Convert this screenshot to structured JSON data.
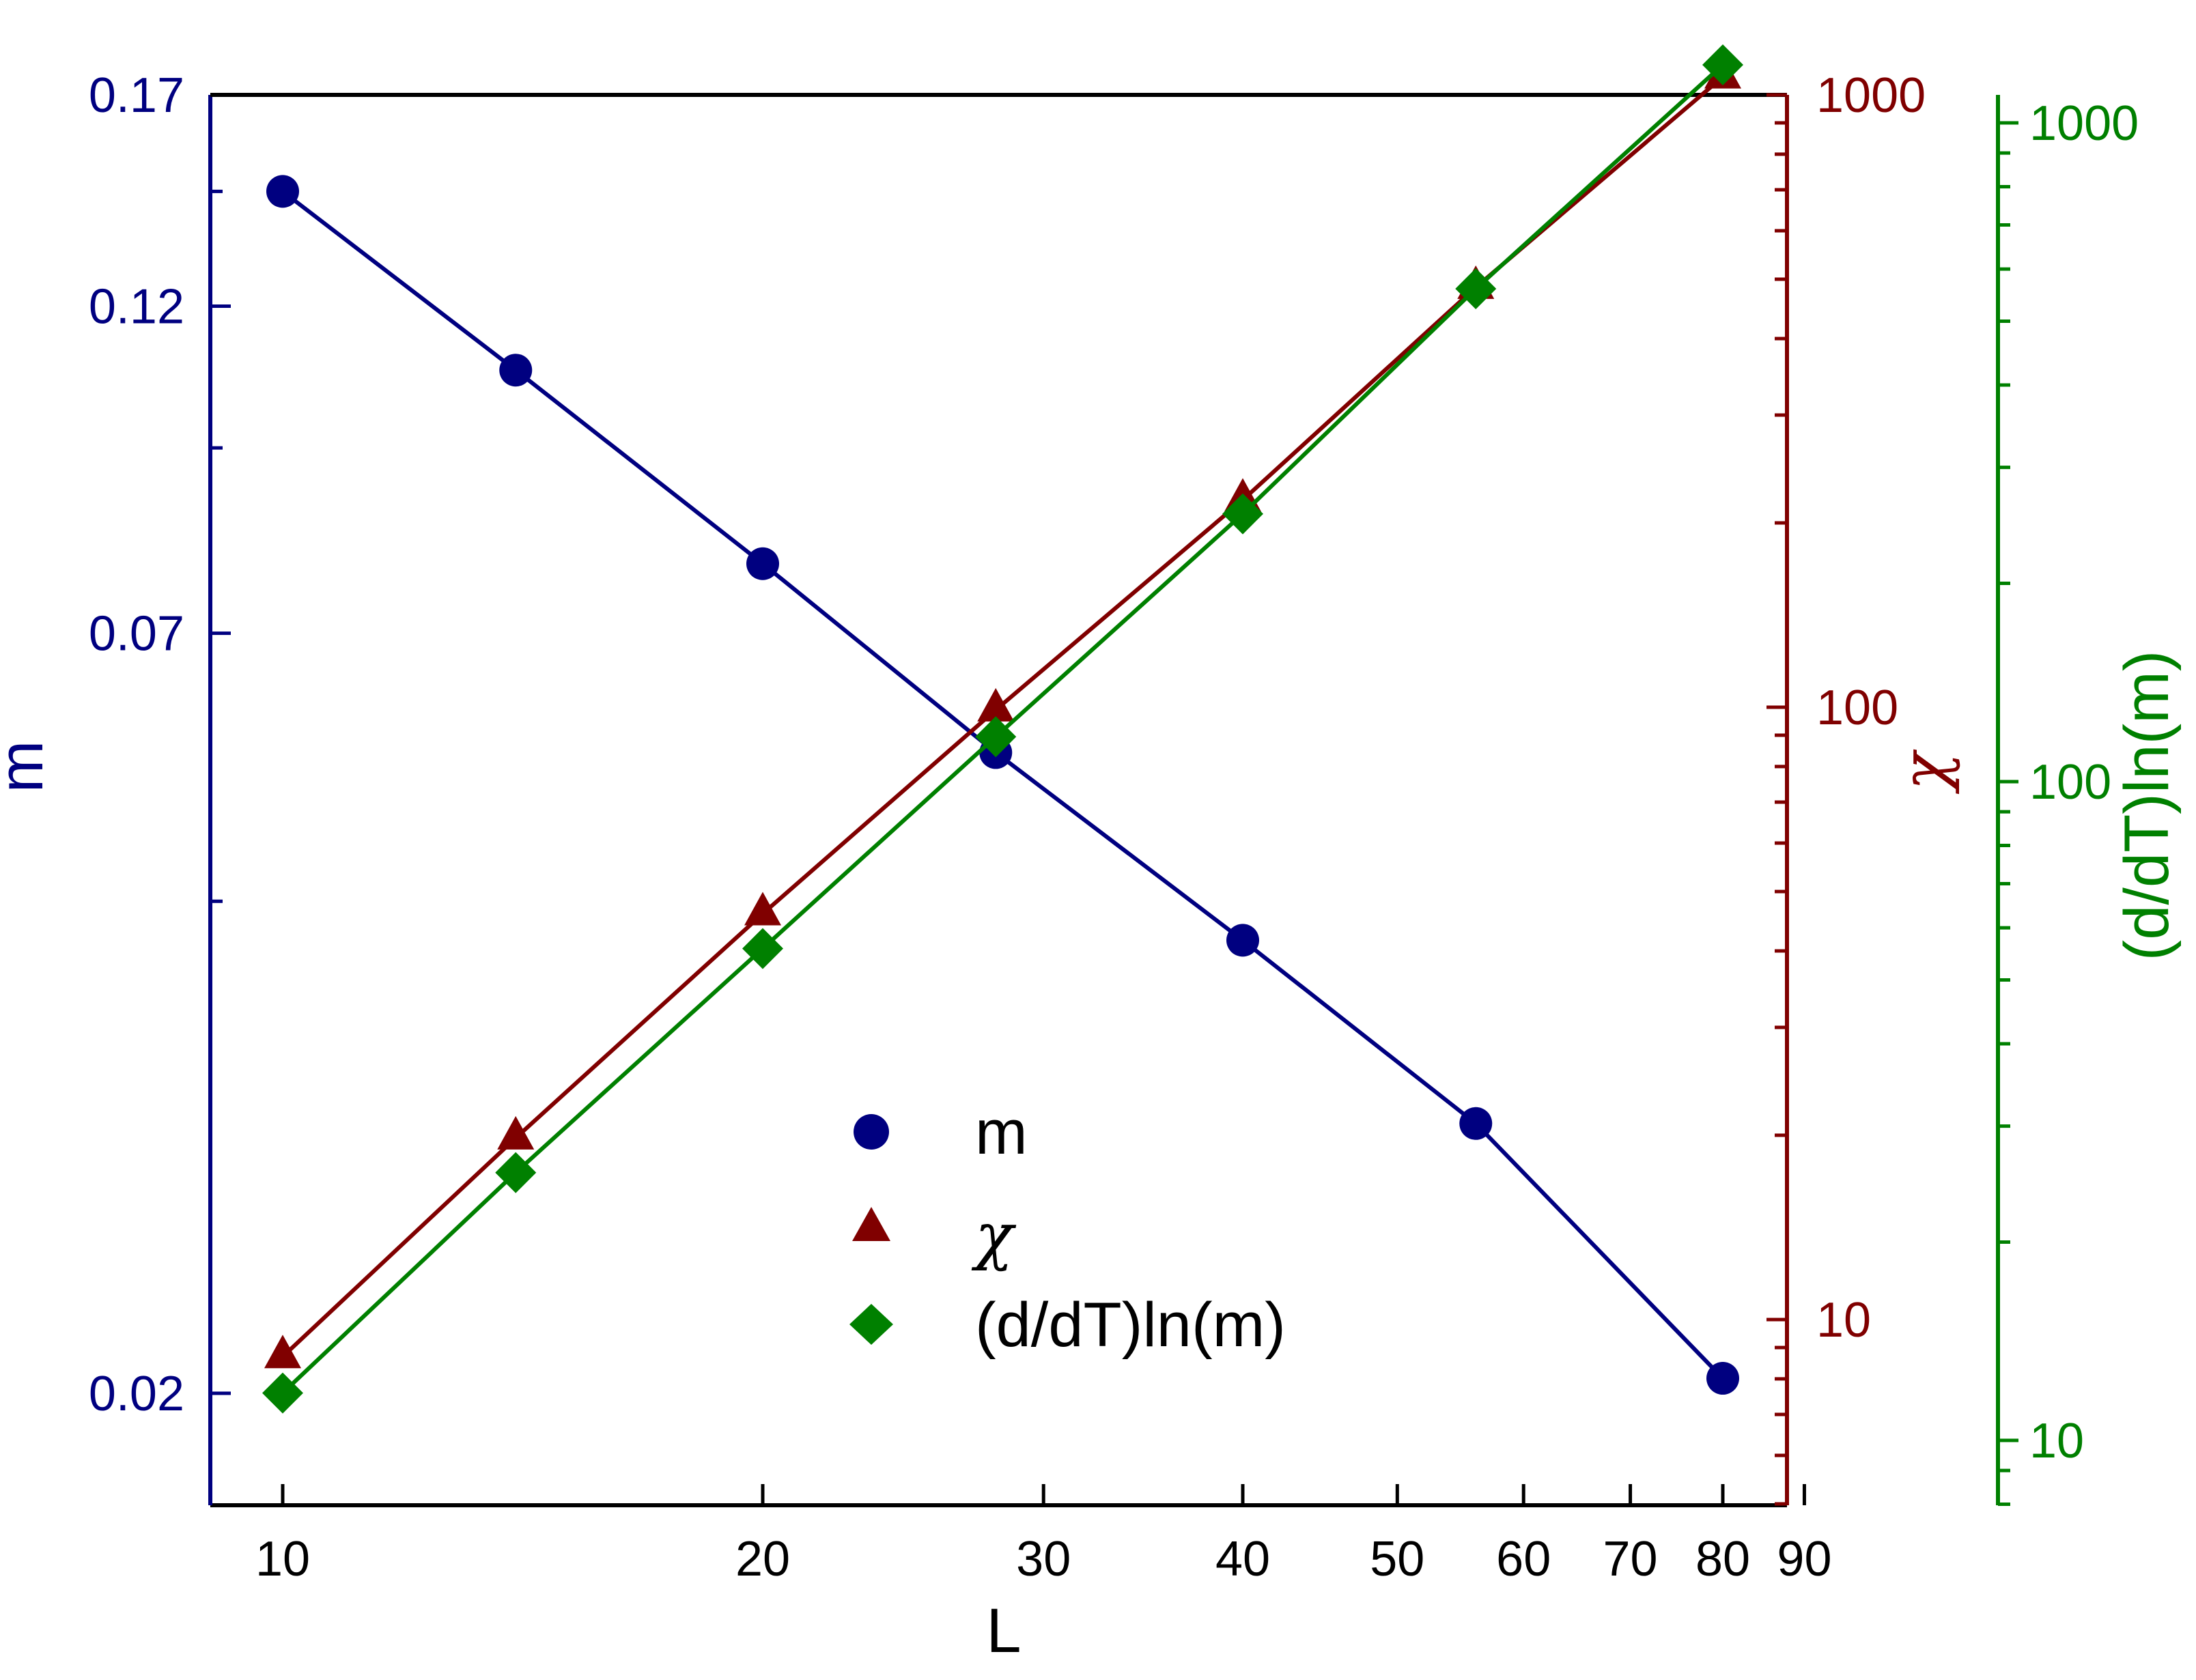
{
  "chart_data": {
    "type": "scatter",
    "x": [
      10,
      14,
      20,
      28,
      40,
      56,
      80
    ],
    "xlabel": "L",
    "xscale": "log",
    "xlim": [
      9,
      90
    ],
    "xticks": [
      10,
      20,
      30,
      40,
      50,
      60,
      70,
      80,
      90
    ],
    "xtick_labels": [
      "10",
      "20",
      "30",
      "40",
      "50",
      "60",
      "70",
      "80",
      "90"
    ],
    "axes": {
      "m": {
        "label": "m",
        "scale": "log",
        "ylim": [
          0.0155,
          0.17
        ],
        "ticks": [
          0.02,
          0.07,
          0.12,
          0.17
        ],
        "tick_labels": [
          "0.02",
          "0.07",
          "0.12",
          "0.17"
        ],
        "color": "#000080"
      },
      "chi": {
        "label": "χ",
        "scale": "log",
        "ylim": [
          5,
          1000
        ],
        "ticks": [
          10,
          100,
          1000
        ],
        "tick_labels": [
          "10",
          "100",
          "1000"
        ],
        "color": "#800000"
      },
      "dlnm": {
        "label": "(d/dT)ln(m)",
        "scale": "log",
        "ylim": [
          6.3,
          1250
        ],
        "ticks": [
          10,
          100,
          1000
        ],
        "tick_labels": [
          "10",
          "100",
          "1000"
        ],
        "color": "#008000"
      }
    },
    "series": [
      {
        "name": "m",
        "axis": "m",
        "marker": "circle",
        "color": "#000080",
        "values": [
          0.145,
          0.108,
          0.0785,
          0.0575,
          0.0422,
          0.0312,
          0.0205
        ]
      },
      {
        "name": "χ",
        "axis": "chi",
        "marker": "triangle",
        "color": "#800000",
        "values": [
          8.7,
          19.8,
          46,
          99,
          218,
          485,
          1070
        ]
      },
      {
        "name": "(d/dT)ln(m)",
        "axis": "dlnm",
        "marker": "diamond",
        "color": "#008000",
        "values": [
          11.8,
          25.5,
          55.8,
          117,
          255,
          560,
          1225
        ]
      }
    ],
    "legend": {
      "position": "lower-center",
      "entries": [
        {
          "label": "m",
          "marker": "circle",
          "color": "#000080"
        },
        {
          "label": "χ",
          "marker": "triangle",
          "color": "#800000"
        },
        {
          "label": "(d/dT)ln(m)",
          "marker": "diamond",
          "color": "#008000"
        }
      ]
    }
  }
}
